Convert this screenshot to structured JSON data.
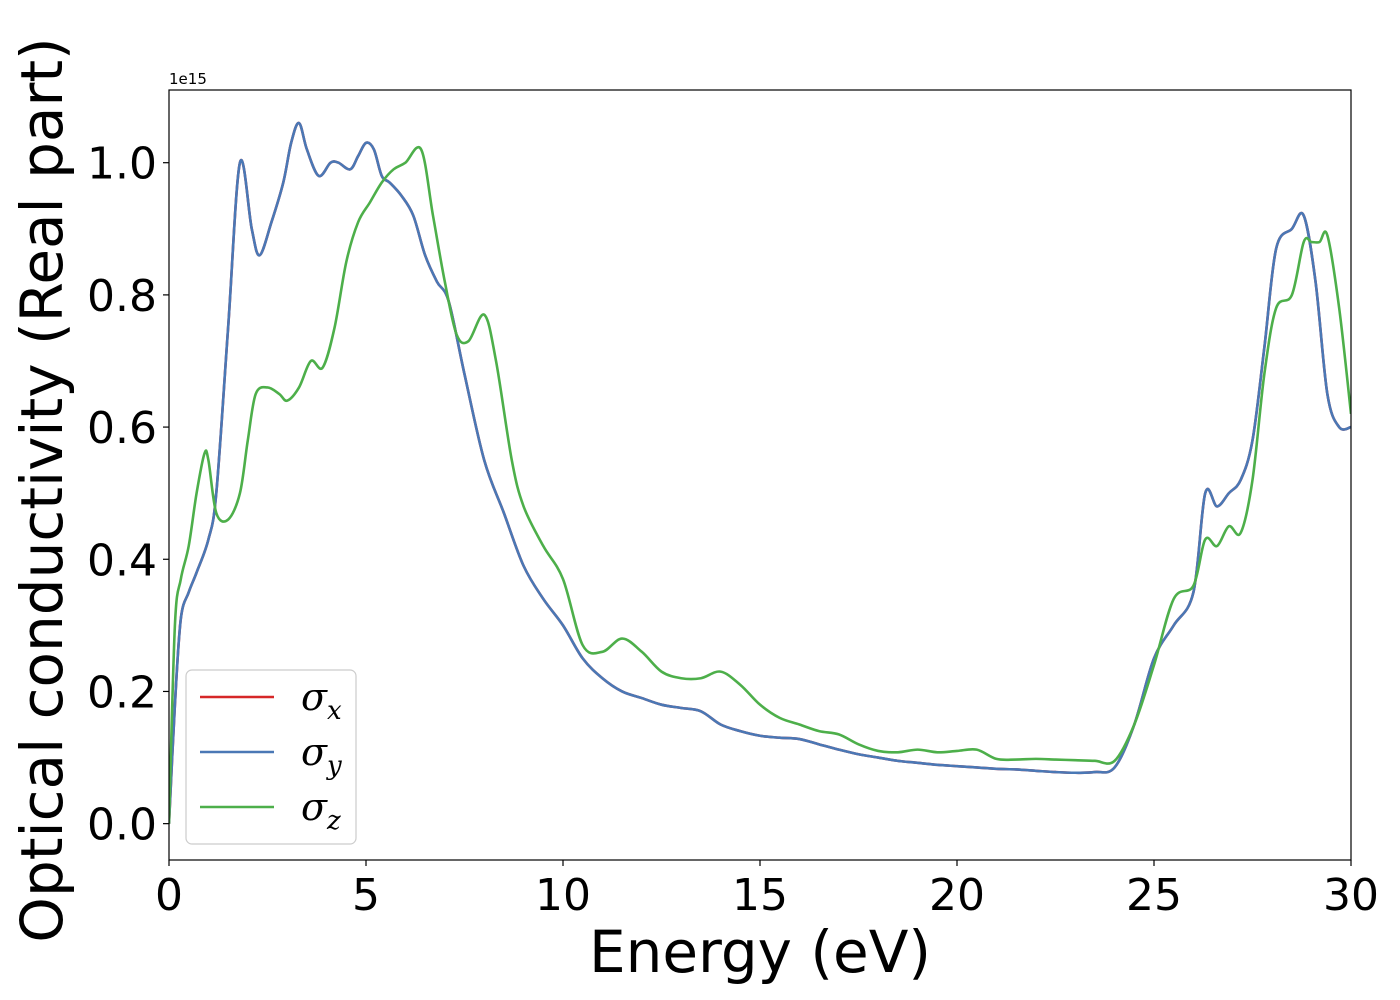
{
  "chart_data": {
    "type": "line",
    "title": "",
    "xlabel": "Energy (eV)",
    "ylabel": "Optical conductivity (Real part)",
    "y_offset_text": "1e15",
    "xlim": [
      0,
      30
    ],
    "ylim": [
      -0.055,
      1.11
    ],
    "x_ticks": [
      0,
      5,
      10,
      15,
      20,
      25,
      30
    ],
    "x_tick_labels": [
      "0",
      "5",
      "10",
      "15",
      "20",
      "25",
      "30"
    ],
    "y_ticks": [
      0.0,
      0.2,
      0.4,
      0.6,
      0.8,
      1.0
    ],
    "y_tick_labels": [
      "0.0",
      "0.2",
      "0.4",
      "0.6",
      "0.8",
      "1.0"
    ],
    "grid": false,
    "legend_position": "lower-left",
    "legend": [
      {
        "symbol": "σ",
        "subscript": "x",
        "color": "#d62728"
      },
      {
        "symbol": "σ",
        "subscript": "y",
        "color": "#4a78b5"
      },
      {
        "symbol": "σ",
        "subscript": "z",
        "color": "#4daf4a"
      }
    ],
    "series": [
      {
        "name": "σx",
        "color": "#d62728",
        "x": [
          0,
          0.15,
          0.3,
          0.5,
          0.7,
          1.0,
          1.2,
          1.5,
          1.8,
          2.1,
          2.3,
          2.6,
          2.9,
          3.1,
          3.3,
          3.5,
          3.8,
          4.1,
          4.3,
          4.6,
          4.8,
          5.0,
          5.2,
          5.4,
          5.6,
          5.9,
          6.2,
          6.5,
          6.8,
          7.1,
          7.5,
          8.0,
          8.5,
          9.0,
          9.5,
          10.0,
          10.5,
          11.0,
          11.5,
          12.0,
          12.5,
          13.0,
          13.5,
          14.0,
          14.5,
          15.0,
          15.5,
          16.0,
          16.5,
          17.0,
          17.5,
          18.0,
          18.5,
          19.0,
          19.5,
          20.0,
          20.5,
          21.0,
          21.5,
          22.0,
          22.5,
          23.0,
          23.5,
          24.0,
          24.5,
          25.0,
          25.5,
          26.0,
          26.3,
          26.6,
          26.9,
          27.2,
          27.5,
          27.8,
          28.1,
          28.5,
          28.8,
          29.1,
          29.4,
          29.7,
          30.0
        ],
        "y": [
          0.0,
          0.18,
          0.31,
          0.35,
          0.38,
          0.43,
          0.5,
          0.75,
          1.0,
          0.9,
          0.86,
          0.91,
          0.97,
          1.03,
          1.06,
          1.02,
          0.98,
          1.0,
          1.0,
          0.99,
          1.01,
          1.03,
          1.02,
          0.98,
          0.97,
          0.95,
          0.92,
          0.86,
          0.82,
          0.79,
          0.68,
          0.55,
          0.47,
          0.39,
          0.34,
          0.3,
          0.25,
          0.22,
          0.2,
          0.19,
          0.18,
          0.175,
          0.17,
          0.15,
          0.14,
          0.133,
          0.13,
          0.128,
          0.12,
          0.112,
          0.105,
          0.1,
          0.095,
          0.092,
          0.089,
          0.087,
          0.085,
          0.083,
          0.082,
          0.08,
          0.078,
          0.077,
          0.078,
          0.085,
          0.15,
          0.25,
          0.3,
          0.35,
          0.5,
          0.48,
          0.5,
          0.52,
          0.58,
          0.72,
          0.87,
          0.9,
          0.92,
          0.82,
          0.65,
          0.6,
          0.6
        ]
      },
      {
        "name": "σy",
        "color": "#4a78b5",
        "x": [
          0,
          0.15,
          0.3,
          0.5,
          0.7,
          1.0,
          1.2,
          1.5,
          1.8,
          2.1,
          2.3,
          2.6,
          2.9,
          3.1,
          3.3,
          3.5,
          3.8,
          4.1,
          4.3,
          4.6,
          4.8,
          5.0,
          5.2,
          5.4,
          5.6,
          5.9,
          6.2,
          6.5,
          6.8,
          7.1,
          7.5,
          8.0,
          8.5,
          9.0,
          9.5,
          10.0,
          10.5,
          11.0,
          11.5,
          12.0,
          12.5,
          13.0,
          13.5,
          14.0,
          14.5,
          15.0,
          15.5,
          16.0,
          16.5,
          17.0,
          17.5,
          18.0,
          18.5,
          19.0,
          19.5,
          20.0,
          20.5,
          21.0,
          21.5,
          22.0,
          22.5,
          23.0,
          23.5,
          24.0,
          24.5,
          25.0,
          25.5,
          26.0,
          26.3,
          26.6,
          26.9,
          27.2,
          27.5,
          27.8,
          28.1,
          28.5,
          28.8,
          29.1,
          29.4,
          29.7,
          30.0
        ],
        "y": [
          0.0,
          0.18,
          0.31,
          0.35,
          0.38,
          0.43,
          0.5,
          0.75,
          1.0,
          0.9,
          0.86,
          0.91,
          0.97,
          1.03,
          1.06,
          1.02,
          0.98,
          1.0,
          1.0,
          0.99,
          1.01,
          1.03,
          1.02,
          0.98,
          0.97,
          0.95,
          0.92,
          0.86,
          0.82,
          0.79,
          0.68,
          0.55,
          0.47,
          0.39,
          0.34,
          0.3,
          0.25,
          0.22,
          0.2,
          0.19,
          0.18,
          0.175,
          0.17,
          0.15,
          0.14,
          0.133,
          0.13,
          0.128,
          0.12,
          0.112,
          0.105,
          0.1,
          0.095,
          0.092,
          0.089,
          0.087,
          0.085,
          0.083,
          0.082,
          0.08,
          0.078,
          0.077,
          0.078,
          0.085,
          0.15,
          0.25,
          0.3,
          0.35,
          0.5,
          0.48,
          0.5,
          0.52,
          0.58,
          0.72,
          0.87,
          0.9,
          0.92,
          0.82,
          0.65,
          0.6,
          0.6
        ]
      },
      {
        "name": "σz",
        "color": "#4daf4a",
        "x": [
          0,
          0.15,
          0.3,
          0.5,
          0.7,
          0.9,
          1.0,
          1.2,
          1.5,
          1.8,
          2.0,
          2.2,
          2.5,
          2.8,
          3.0,
          3.3,
          3.6,
          3.9,
          4.2,
          4.5,
          4.8,
          5.1,
          5.4,
          5.7,
          6.0,
          6.4,
          6.7,
          7.0,
          7.3,
          7.6,
          8.0,
          8.3,
          8.7,
          9.0,
          9.5,
          10.0,
          10.5,
          11.0,
          11.5,
          12.0,
          12.5,
          13.0,
          13.5,
          14.0,
          14.5,
          15.0,
          15.5,
          16.0,
          16.5,
          17.0,
          17.5,
          18.0,
          18.5,
          19.0,
          19.5,
          20.0,
          20.5,
          21.0,
          21.5,
          22.0,
          22.5,
          23.0,
          23.5,
          24.0,
          24.5,
          25.0,
          25.5,
          26.0,
          26.3,
          26.6,
          26.9,
          27.2,
          27.5,
          27.8,
          28.1,
          28.5,
          28.8,
          29.0,
          29.2,
          29.4,
          29.7,
          30.0
        ],
        "y": [
          0.0,
          0.3,
          0.37,
          0.42,
          0.5,
          0.56,
          0.55,
          0.47,
          0.46,
          0.5,
          0.58,
          0.65,
          0.66,
          0.65,
          0.64,
          0.66,
          0.7,
          0.69,
          0.75,
          0.85,
          0.91,
          0.94,
          0.97,
          0.99,
          1.0,
          1.02,
          0.92,
          0.82,
          0.74,
          0.73,
          0.77,
          0.7,
          0.55,
          0.48,
          0.42,
          0.37,
          0.27,
          0.26,
          0.28,
          0.26,
          0.23,
          0.22,
          0.22,
          0.23,
          0.21,
          0.18,
          0.16,
          0.15,
          0.14,
          0.135,
          0.12,
          0.11,
          0.108,
          0.112,
          0.108,
          0.11,
          0.112,
          0.098,
          0.097,
          0.098,
          0.097,
          0.096,
          0.095,
          0.095,
          0.15,
          0.24,
          0.34,
          0.36,
          0.43,
          0.42,
          0.45,
          0.44,
          0.52,
          0.68,
          0.78,
          0.8,
          0.88,
          0.88,
          0.88,
          0.89,
          0.78,
          0.62
        ]
      }
    ]
  }
}
